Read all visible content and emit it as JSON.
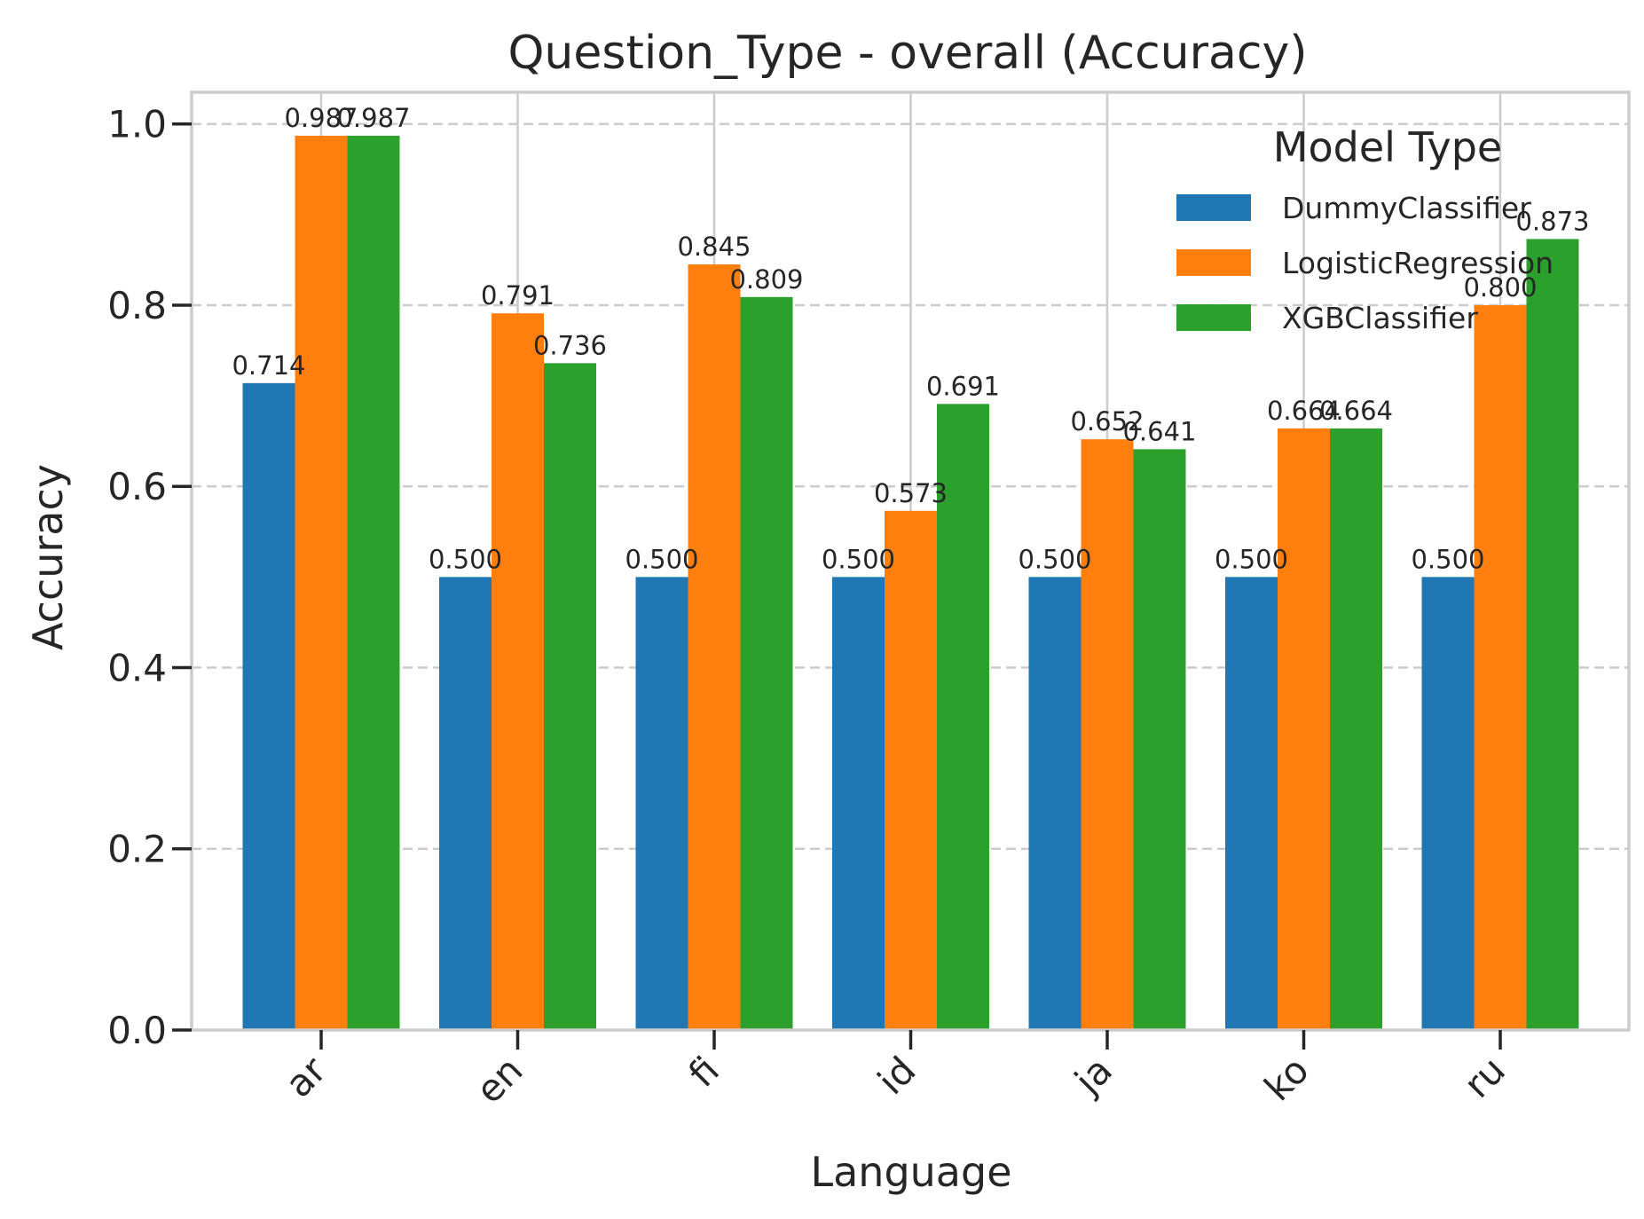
{
  "chart_data": {
    "type": "bar",
    "title": "Question_Type - overall (Accuracy)",
    "xlabel": "Language",
    "ylabel": "Accuracy",
    "ylim": [
      0,
      1.035
    ],
    "yticks": [
      0.0,
      0.2,
      0.4,
      0.6,
      0.8,
      1.0
    ],
    "ytick_labels": [
      "0.0",
      "0.2",
      "0.4",
      "0.6",
      "0.8",
      "1.0"
    ],
    "grid": true,
    "categories": [
      "ar",
      "en",
      "fi",
      "id",
      "ja",
      "ko",
      "ru"
    ],
    "legend": {
      "title": "Model Type",
      "placement": "top-right"
    },
    "series": [
      {
        "name": "DummyClassifier",
        "color": "#1f77b4",
        "values": [
          0.714,
          0.5,
          0.5,
          0.5,
          0.5,
          0.5,
          0.5
        ],
        "labels": [
          "0.714",
          "0.500",
          "0.500",
          "0.500",
          "0.500",
          "0.500",
          "0.500"
        ]
      },
      {
        "name": "LogisticRegression",
        "color": "#ff7f0e",
        "values": [
          0.987,
          0.791,
          0.845,
          0.573,
          0.652,
          0.664,
          0.8
        ],
        "labels": [
          "0.987",
          "0.791",
          "0.845",
          "0.573",
          "0.652",
          "0.664",
          "0.800"
        ]
      },
      {
        "name": "XGBClassifier",
        "color": "#2ca02c",
        "values": [
          0.987,
          0.736,
          0.809,
          0.691,
          0.641,
          0.664,
          0.873
        ],
        "labels": [
          "0.987",
          "0.736",
          "0.809",
          "0.691",
          "0.641",
          "0.664",
          "0.873"
        ]
      }
    ]
  }
}
